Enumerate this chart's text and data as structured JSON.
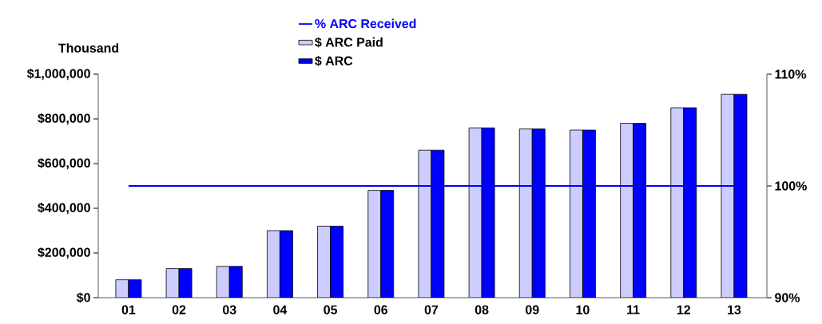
{
  "chart_data": {
    "type": "bar",
    "ylabel": "Thousand",
    "categories": [
      "01",
      "02",
      "03",
      "04",
      "05",
      "06",
      "07",
      "08",
      "09",
      "10",
      "11",
      "12",
      "13"
    ],
    "series": [
      {
        "name": "$ ARC Paid",
        "color": "#ccccff",
        "values": [
          80000,
          130000,
          140000,
          300000,
          320000,
          480000,
          660000,
          760000,
          755000,
          750000,
          780000,
          850000,
          910000
        ]
      },
      {
        "name": "$ ARC",
        "color": "#0000ff",
        "values": [
          80000,
          130000,
          140000,
          300000,
          320000,
          480000,
          660000,
          760000,
          755000,
          750000,
          780000,
          850000,
          910000
        ]
      },
      {
        "name": "% ARC Received",
        "type": "line",
        "axis": "y2",
        "color": "#0000ff",
        "values": [
          100,
          100,
          100,
          100,
          100,
          100,
          100,
          100,
          100,
          100,
          100,
          100,
          100
        ]
      }
    ],
    "ylim": [
      0,
      1000000
    ],
    "yticks": [
      {
        "value": 0,
        "label": "$0"
      },
      {
        "value": 200000,
        "label": "$200,000"
      },
      {
        "value": 400000,
        "label": "$400,000"
      },
      {
        "value": 600000,
        "label": "$600,000"
      },
      {
        "value": 800000,
        "label": "$800,000"
      },
      {
        "value": 1000000,
        "label": "$1,000,000"
      }
    ],
    "y2lim": [
      90,
      110
    ],
    "y2ticks": [
      {
        "value": 90,
        "label": "90%"
      },
      {
        "value": 100,
        "label": "100%"
      },
      {
        "value": 110,
        "label": "110%"
      }
    ],
    "legend": "top",
    "grid": false,
    "marker": "none"
  }
}
